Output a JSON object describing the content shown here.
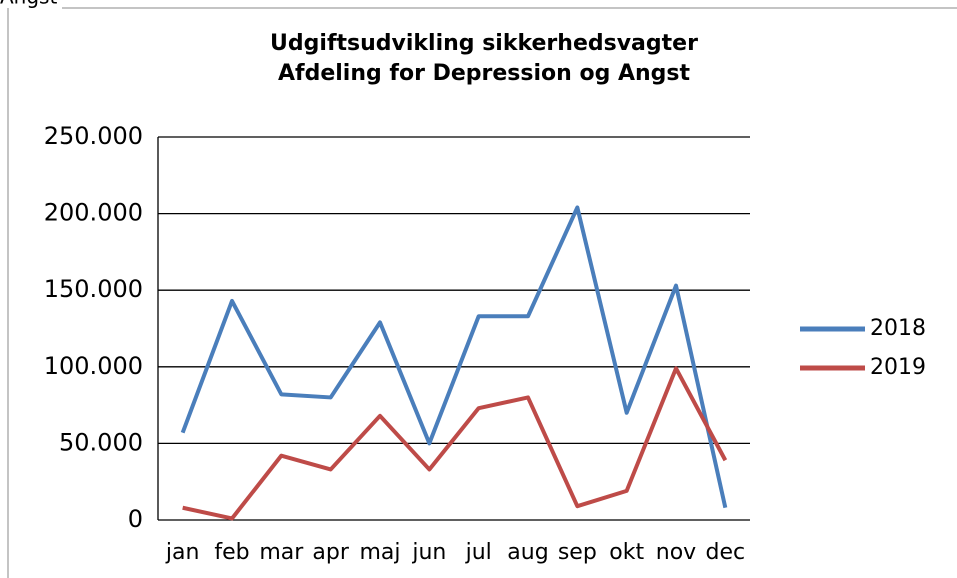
{
  "caption": "Angst",
  "chart_data": {
    "type": "line",
    "title": "Udgiftsudvikling sikkerhedsvagter",
    "subtitle": "Afdeling for Depression og Angst",
    "categories": [
      "jan",
      "feb",
      "mar",
      "apr",
      "maj",
      "jun",
      "jul",
      "aug",
      "sep",
      "okt",
      "nov",
      "dec"
    ],
    "series": [
      {
        "name": "2018",
        "color": "#4a7ebb",
        "values": [
          57000,
          143000,
          82000,
          80000,
          129000,
          50000,
          133000,
          133000,
          204000,
          70000,
          153000,
          8000
        ]
      },
      {
        "name": "2019",
        "color": "#be4b48",
        "values": [
          8000,
          1000,
          42000,
          33000,
          68000,
          33000,
          73000,
          80000,
          9000,
          19000,
          99000,
          39000
        ]
      }
    ],
    "ylim": [
      0,
      250000
    ],
    "yticks": [
      0,
      {
        "value": 50000,
        "label": "50.000"
      },
      {
        "value": 100000,
        "label": "100.000"
      },
      {
        "value": 150000,
        "label": "150.000"
      },
      {
        "value": 200000,
        "label": "200.000"
      },
      {
        "value": 250000,
        "label": "250.000"
      }
    ],
    "grid": true,
    "legend": "right"
  }
}
